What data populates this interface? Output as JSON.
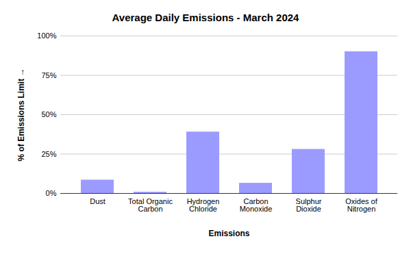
{
  "chart_data": {
    "type": "bar",
    "title": "Average Daily Emissions - March 2024",
    "x_label": "Emissions",
    "y_label": "% of Emissions Limit",
    "categories": [
      "Dust",
      "Total Organic Carbon",
      "Hydrogen Chloride",
      "Carbon Monoxide",
      "Sulphur Dioxide",
      "Oxides of Nitrogen"
    ],
    "values": [
      8.5,
      0.8,
      39,
      6.5,
      28,
      90
    ],
    "color": "#9b9bff",
    "ylim": [
      0,
      100
    ],
    "yticks": [
      {
        "value": 0,
        "label": "0%"
      },
      {
        "value": 25,
        "label": "25%"
      },
      {
        "value": 50,
        "label": "50%"
      },
      {
        "value": 75,
        "label": "75%"
      },
      {
        "value": 100,
        "label": "100%"
      }
    ],
    "grid": true
  }
}
